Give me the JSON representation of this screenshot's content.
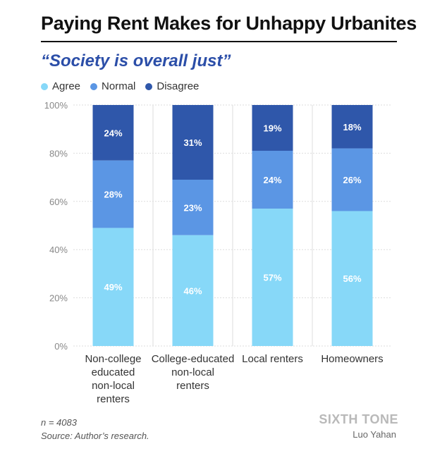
{
  "header": {
    "title": "Paying Rent Makes for Unhappy Urbanites",
    "subtitle": "“Society is overall just”"
  },
  "colors": {
    "agree": "#87d8f8",
    "normal": "#5b96e4",
    "disagree": "#2f57aa",
    "grid": "#dddddd",
    "label": "#ffffff"
  },
  "chart_data": {
    "type": "bar",
    "stacked": true,
    "categories": [
      [
        "Non-college",
        "educated",
        "non-local",
        "renters"
      ],
      [
        "College-educated",
        "non-local",
        "renters"
      ],
      [
        "Local renters"
      ],
      [
        "Homeowners"
      ]
    ],
    "series": [
      {
        "name": "Agree",
        "values": [
          49,
          46,
          57,
          56
        ],
        "labels": [
          "49%",
          "46%",
          "57%",
          "56%"
        ]
      },
      {
        "name": "Normal",
        "values": [
          28,
          23,
          24,
          26
        ],
        "labels": [
          "28%",
          "23%",
          "24%",
          "26%"
        ]
      },
      {
        "name": "Disagree",
        "values": [
          24,
          31,
          19,
          18
        ],
        "labels": [
          "24%",
          "31%",
          "19%",
          "18%"
        ]
      }
    ],
    "ylim": [
      0,
      100
    ],
    "yticks": [
      "0%",
      "20%",
      "40%",
      "60%",
      "80%",
      "100%"
    ],
    "ytick_values": [
      0,
      20,
      40,
      60,
      80,
      100
    ],
    "grid": true,
    "legend_position": "top-left"
  },
  "footer": {
    "sample": "n = 4083",
    "source": "Source: Author’s research.",
    "brand": "SIXTH TONE",
    "author": "Luo Yahan"
  }
}
